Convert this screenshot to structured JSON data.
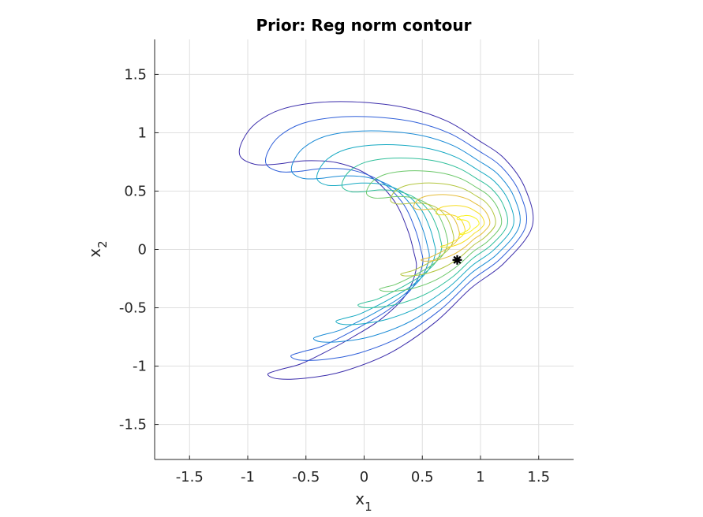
{
  "chart_data": {
    "type": "contour",
    "title": "Prior: Reg norm contour",
    "xlabel": {
      "base": "x",
      "sub": "1"
    },
    "ylabel": {
      "base": "x",
      "sub": "2"
    },
    "xlim": [
      -1.8,
      1.8
    ],
    "ylim": [
      -1.8,
      1.8
    ],
    "xticks": [
      -1.5,
      -1,
      -0.5,
      0,
      0.5,
      1,
      1.5
    ],
    "yticks": [
      -1.5,
      -1,
      -0.5,
      0,
      0.5,
      1,
      1.5
    ],
    "xtick_labels": [
      "-1.5",
      "-1",
      "-0.5",
      "0",
      "0.5",
      "1",
      "1.5"
    ],
    "ytick_labels": [
      "-1.5",
      "-1",
      "-0.5",
      "0",
      "0.5",
      "1",
      "1.5"
    ],
    "grid": true,
    "colormap": [
      "#3b2dab",
      "#2f5fd9",
      "#1a8bd6",
      "#15a9c2",
      "#2fbf9a",
      "#6cc86a",
      "#b3c63f",
      "#e5bd3a",
      "#f6dd23",
      "#f9f21a"
    ],
    "levels": 10,
    "peak": {
      "x": 0.93,
      "y": 0.22
    },
    "marker": {
      "x": 0.8,
      "y": -0.09,
      "color": "#000000",
      "symbol": "asterisk"
    }
  }
}
